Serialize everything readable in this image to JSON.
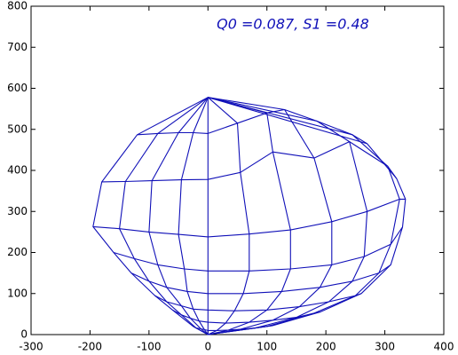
{
  "chart_data": {
    "type": "wireframe",
    "annotation": "Q0 =0.087, S1 =0.48",
    "color": "#1010b8",
    "xlim": [
      -300,
      400
    ],
    "xticks": [
      -300,
      -200,
      -100,
      0,
      100,
      200,
      300,
      400
    ],
    "ylim": [
      0,
      800
    ],
    "yticks": [
      0,
      100,
      200,
      300,
      400,
      500,
      600,
      700,
      800
    ],
    "top": {
      "x": 0,
      "y": 578
    },
    "bottom": {
      "x": 0,
      "y": 0
    },
    "rings": [
      {
        "x": [
          -120,
          -85,
          -50,
          -25,
          0,
          50,
          100,
          130,
          185,
          245,
          270
        ],
        "y": [
          487,
          490,
          492,
          492,
          490,
          515,
          540,
          548,
          520,
          487,
          465
        ]
      },
      {
        "x": [
          -180,
          -140,
          -95,
          -45,
          0,
          55,
          110,
          180,
          240,
          305,
          320
        ],
        "y": [
          372,
          373,
          375,
          377,
          378,
          395,
          445,
          430,
          470,
          410,
          380
        ]
      },
      {
        "x": [
          -195,
          -150,
          -100,
          -50,
          0,
          70,
          140,
          210,
          270,
          325,
          335
        ],
        "y": [
          263,
          258,
          250,
          244,
          238,
          245,
          255,
          275,
          300,
          330,
          330
        ]
      },
      {
        "x": [
          -160,
          -125,
          -85,
          -40,
          0,
          70,
          140,
          210,
          265,
          310,
          330
        ],
        "y": [
          200,
          185,
          170,
          160,
          155,
          155,
          160,
          170,
          190,
          220,
          262
        ]
      },
      {
        "x": [
          -130,
          -100,
          -70,
          -35,
          0,
          60,
          125,
          190,
          245,
          290,
          310
        ],
        "y": [
          150,
          130,
          115,
          105,
          100,
          100,
          105,
          115,
          130,
          150,
          170
        ]
      },
      {
        "x": [
          -90,
          -70,
          -45,
          -25,
          0,
          45,
          100,
          155,
          205,
          250,
          260
        ],
        "y": [
          95,
          80,
          70,
          62,
          60,
          58,
          60,
          68,
          80,
          95,
          100
        ]
      },
      {
        "x": [
          -60,
          -45,
          -30,
          -15,
          0,
          30,
          70,
          110,
          150,
          180,
          190
        ],
        "y": [
          60,
          48,
          40,
          33,
          30,
          28,
          30,
          35,
          42,
          52,
          55
        ]
      },
      {
        "x": [
          -25,
          -20,
          -12,
          -6,
          0,
          15,
          35,
          55,
          80,
          100,
          110
        ],
        "y": [
          20,
          16,
          14,
          12,
          10,
          10,
          11,
          13,
          16,
          20,
          22
        ]
      }
    ]
  }
}
